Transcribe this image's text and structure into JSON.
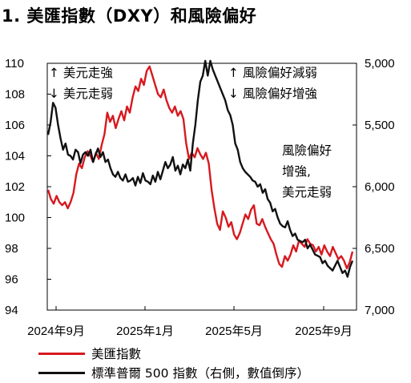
{
  "title": "1. 美匯指數（DXY）和風險偏好",
  "chart_data": {
    "type": "line",
    "left_axis": {
      "ticks": [
        110,
        108,
        106,
        104,
        102,
        100,
        98,
        96,
        94
      ],
      "ylim": [
        94,
        110
      ]
    },
    "right_axis": {
      "ticks": [
        "5,000",
        "5,500",
        "6,000",
        "6,500",
        "7,000"
      ],
      "ylim": [
        5000,
        7000
      ],
      "inverted": true
    },
    "x_ticks": [
      "2024年9月",
      "2025年1月",
      "2025年5月",
      "2025年9月"
    ],
    "annotations": [
      {
        "id": "left-up",
        "text": "↑ 美元走強"
      },
      {
        "id": "left-down",
        "text": "↓ 美元走弱"
      },
      {
        "id": "right-up",
        "text": "↑ 風險偏好減弱"
      },
      {
        "id": "right-down",
        "text": "↓ 風險偏好增強"
      },
      {
        "id": "mid-1",
        "text": "風險偏好"
      },
      {
        "id": "mid-2",
        "text": "增強,"
      },
      {
        "id": "mid-3",
        "text": "美元走弱"
      }
    ],
    "series": [
      {
        "name": "美匯指數",
        "axis": "left",
        "color": "#d7191f",
        "values": [
          101.8,
          101.2,
          100.9,
          101.4,
          101.0,
          100.8,
          101.0,
          100.6,
          101.0,
          101.6,
          102.8,
          103.5,
          103.2,
          103.9,
          104.3,
          104.0,
          103.6,
          104.2,
          103.8,
          104.7,
          105.4,
          106.8,
          106.2,
          106.6,
          105.8,
          106.4,
          106.9,
          106.3,
          107.2,
          106.8,
          107.8,
          108.5,
          108.2,
          109.0,
          108.6,
          109.5,
          109.8,
          109.2,
          108.6,
          108.0,
          107.8,
          108.3,
          107.6,
          107.1,
          106.8,
          107.2,
          106.6,
          106.9,
          106.4,
          104.8,
          103.8,
          104.2,
          103.9,
          104.5,
          104.1,
          103.8,
          104.2,
          103.5,
          101.8,
          100.6,
          99.6,
          99.2,
          100.4,
          100.0,
          99.4,
          99.7,
          98.9,
          98.6,
          99.0,
          99.6,
          100.2,
          99.9,
          100.5,
          100.8,
          99.6,
          99.5,
          99.9,
          99.4,
          99.0,
          98.6,
          98.3,
          97.6,
          97.0,
          96.8,
          97.5,
          97.2,
          97.6,
          98.2,
          97.8,
          98.5,
          98.3,
          98.1,
          98.6,
          98.3,
          98.2,
          97.8,
          98.1,
          97.6,
          98.2,
          97.8,
          97.5,
          98.1,
          97.7,
          97.3,
          97.5,
          97.2,
          96.7,
          97.1,
          97.8
        ]
      },
      {
        "name": "標準普爾 500 指數（右側，數值倒序）",
        "axis": "right",
        "color": "#111111",
        "values": [
          5580,
          5480,
          5320,
          5360,
          5500,
          5610,
          5700,
          5650,
          5740,
          5750,
          5780,
          5700,
          5720,
          5810,
          5740,
          5720,
          5750,
          5700,
          5800,
          5740,
          5690,
          5760,
          5720,
          5800,
          5780,
          5850,
          5900,
          5920,
          5880,
          5930,
          5950,
          5900,
          5960,
          5950,
          5930,
          5990,
          5920,
          5970,
          5890,
          5950,
          5960,
          5980,
          5910,
          5960,
          5880,
          5940,
          5870,
          5800,
          5850,
          5820,
          5760,
          5870,
          5830,
          5900,
          5820,
          5850,
          5780,
          5870,
          5650,
          5500,
          5300,
          5150,
          5100,
          4980,
          5100,
          4980,
          5050,
          5100,
          5150,
          5200,
          5250,
          5300,
          5380,
          5420,
          5500,
          5650,
          5700,
          5800,
          5850,
          5880,
          5900,
          5920,
          5950,
          5960,
          6000,
          5980,
          6050,
          6020,
          6100,
          6130,
          6200,
          6180,
          6250,
          6300,
          6320,
          6330,
          6280,
          6350,
          6400,
          6380,
          6430,
          6440,
          6450,
          6430,
          6500,
          6470,
          6510,
          6550,
          6560,
          6570,
          6620,
          6600,
          6640,
          6660,
          6680,
          6640,
          6600,
          6650,
          6700,
          6680,
          6730,
          6650,
          6600
        ]
      }
    ]
  },
  "legend": [
    {
      "label": "美匯指數",
      "color": "#d7191f"
    },
    {
      "label": "標準普爾 500 指數（右側，數值倒序）",
      "color": "#111111"
    }
  ]
}
